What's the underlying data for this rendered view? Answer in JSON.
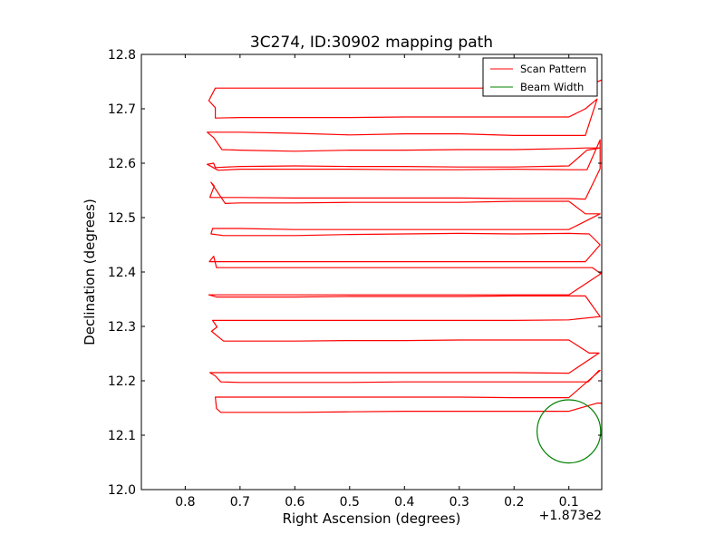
{
  "chart_data": {
    "type": "line",
    "title": "3C274, ID:30902 mapping path",
    "xlabel": "Right Ascension (degrees)",
    "ylabel": "Declination (degrees)",
    "x_offset_label": "+1.873e2",
    "x_axis_reversed": true,
    "xlim": [
      0.88,
      0.04
    ],
    "ylim": [
      12.0,
      12.8
    ],
    "xticks": [
      0.8,
      0.7,
      0.6,
      0.5,
      0.4,
      0.3,
      0.2,
      0.1
    ],
    "xtick_labels": [
      "0.8",
      "0.7",
      "0.6",
      "0.5",
      "0.4",
      "0.3",
      "0.2",
      "0.1"
    ],
    "yticks": [
      12.0,
      12.1,
      12.2,
      12.3,
      12.4,
      12.5,
      12.6,
      12.7,
      12.8
    ],
    "ytick_labels": [
      "12.0",
      "12.1",
      "12.2",
      "12.3",
      "12.4",
      "12.5",
      "12.6",
      "12.7",
      "12.8"
    ],
    "grid": false,
    "legend_position": "top-right",
    "series": [
      {
        "name": "Scan Pattern",
        "color": "#ff0000",
        "x": [
          0.04,
          0.07,
          0.11,
          0.15,
          0.2,
          0.3,
          0.4,
          0.5,
          0.6,
          0.7,
          0.745,
          0.757,
          0.745,
          0.745,
          0.7,
          0.6,
          0.5,
          0.4,
          0.3,
          0.2,
          0.1,
          0.07,
          0.0484,
          0.07,
          0.1,
          0.2,
          0.3,
          0.4,
          0.5,
          0.6,
          0.7,
          0.76,
          0.748,
          0.733,
          0.7,
          0.6,
          0.5,
          0.4,
          0.3,
          0.2,
          0.1,
          0.067,
          0.043,
          0.067,
          0.1,
          0.2,
          0.3,
          0.4,
          0.5,
          0.6,
          0.7,
          0.745,
          0.748,
          0.76,
          0.74,
          0.7,
          0.6,
          0.5,
          0.4,
          0.3,
          0.2,
          0.1,
          0.067,
          0.043,
          0.043,
          0.07,
          0.1,
          0.2,
          0.3,
          0.4,
          0.5,
          0.6,
          0.7,
          0.755,
          0.747,
          0.753,
          0.727,
          0.7,
          0.6,
          0.5,
          0.4,
          0.3,
          0.2,
          0.1,
          0.07,
          0.043,
          0.043,
          0.1,
          0.2,
          0.3,
          0.4,
          0.5,
          0.6,
          0.7,
          0.75,
          0.753,
          0.73,
          0.7,
          0.6,
          0.5,
          0.4,
          0.3,
          0.2,
          0.1,
          0.063,
          0.043,
          0.043,
          0.07,
          0.1,
          0.2,
          0.3,
          0.4,
          0.5,
          0.6,
          0.7,
          0.756,
          0.748,
          0.743,
          0.7,
          0.6,
          0.5,
          0.4,
          0.3,
          0.2,
          0.1,
          0.057,
          0.043,
          0.04,
          0.1,
          0.2,
          0.3,
          0.4,
          0.5,
          0.6,
          0.7,
          0.755,
          0.757,
          0.743,
          0.7,
          0.6,
          0.5,
          0.4,
          0.3,
          0.2,
          0.1,
          0.07,
          0.043,
          0.043,
          0.1,
          0.2,
          0.3,
          0.4,
          0.5,
          0.6,
          0.7,
          0.75,
          0.742,
          0.752,
          0.73,
          0.7,
          0.6,
          0.5,
          0.4,
          0.3,
          0.2,
          0.1,
          0.063,
          0.045,
          0.045,
          0.1,
          0.2,
          0.3,
          0.4,
          0.5,
          0.6,
          0.7,
          0.755,
          0.745,
          0.735,
          0.7,
          0.6,
          0.5,
          0.4,
          0.3,
          0.2,
          0.1,
          0.065,
          0.045,
          0.043,
          0.1,
          0.2,
          0.3,
          0.4,
          0.5,
          0.6,
          0.7,
          0.745,
          0.743,
          0.735,
          0.7,
          0.6,
          0.5,
          0.4,
          0.3,
          0.2,
          0.1,
          0.048,
          0.04
        ],
        "y": [
          12.753,
          12.741,
          12.741,
          12.739,
          12.738,
          12.738,
          12.738,
          12.738,
          12.738,
          12.738,
          12.738,
          12.715,
          12.702,
          12.683,
          12.684,
          12.684,
          12.684,
          12.685,
          12.685,
          12.685,
          12.685,
          12.7,
          12.718,
          12.651,
          12.651,
          12.651,
          12.654,
          12.654,
          12.652,
          12.655,
          12.657,
          12.657,
          12.647,
          12.625,
          12.624,
          12.622,
          12.624,
          12.624,
          12.625,
          12.625,
          12.627,
          12.628,
          12.628,
          12.624,
          12.595,
          12.593,
          12.593,
          12.594,
          12.594,
          12.595,
          12.594,
          12.592,
          12.6,
          12.598,
          12.587,
          12.589,
          12.589,
          12.589,
          12.588,
          12.588,
          12.589,
          12.588,
          12.588,
          12.643,
          12.59,
          12.534,
          12.535,
          12.535,
          12.536,
          12.536,
          12.536,
          12.536,
          12.537,
          12.537,
          12.558,
          12.565,
          12.526,
          12.527,
          12.527,
          12.528,
          12.528,
          12.528,
          12.53,
          12.53,
          12.507,
          12.507,
          12.507,
          12.478,
          12.478,
          12.478,
          12.478,
          12.478,
          12.478,
          12.48,
          12.48,
          12.47,
          12.467,
          12.467,
          12.467,
          12.469,
          12.47,
          12.471,
          12.47,
          12.471,
          12.47,
          12.45,
          12.45,
          12.419,
          12.419,
          12.419,
          12.419,
          12.419,
          12.419,
          12.419,
          12.419,
          12.419,
          12.429,
          12.408,
          12.408,
          12.408,
          12.408,
          12.408,
          12.408,
          12.408,
          12.408,
          12.408,
          12.398,
          12.398,
          12.358,
          12.358,
          12.358,
          12.358,
          12.358,
          12.358,
          12.358,
          12.358,
          12.358,
          12.354,
          12.354,
          12.354,
          12.355,
          12.355,
          12.355,
          12.356,
          12.356,
          12.356,
          12.318,
          12.318,
          12.312,
          12.311,
          12.311,
          12.311,
          12.311,
          12.311,
          12.311,
          12.311,
          12.299,
          12.291,
          12.273,
          12.273,
          12.273,
          12.274,
          12.274,
          12.275,
          12.275,
          12.275,
          12.251,
          12.251,
          12.251,
          12.214,
          12.215,
          12.215,
          12.215,
          12.215,
          12.215,
          12.215,
          12.215,
          12.209,
          12.198,
          12.197,
          12.197,
          12.197,
          12.198,
          12.198,
          12.198,
          12.198,
          12.198,
          12.219,
          12.219,
          12.169,
          12.169,
          12.17,
          12.17,
          12.17,
          12.17,
          12.17,
          12.17,
          12.149,
          12.142,
          12.142,
          12.142,
          12.143,
          12.144,
          12.144,
          12.144,
          12.144,
          12.159,
          12.159
        ]
      },
      {
        "name": "Beam Width",
        "color": "#008000",
        "shape": "circle",
        "center": [
          0.1,
          12.107
        ],
        "radius": 0.058
      }
    ],
    "extra_path_note": ""
  }
}
